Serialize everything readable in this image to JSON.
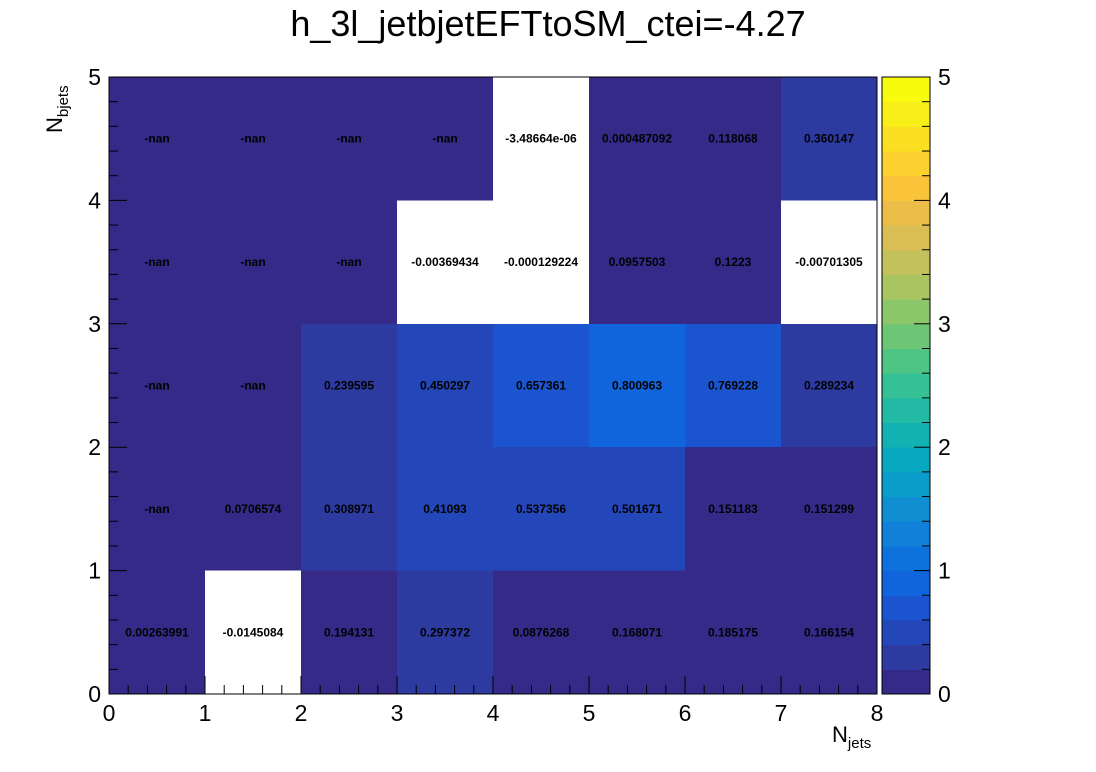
{
  "chart_data": {
    "type": "heatmap",
    "title": "h_3l_jetbjetEFTtoSM_ctei=-4.27",
    "xlabel": {
      "main": "N",
      "sub": "jets"
    },
    "ylabel": {
      "main": "N",
      "sub": "bjets"
    },
    "xlim": [
      0,
      8
    ],
    "ylim": [
      0,
      5
    ],
    "zlim": [
      0,
      5
    ],
    "x_ticks": [
      "0",
      "1",
      "2",
      "3",
      "4",
      "5",
      "6",
      "7",
      "8"
    ],
    "y_ticks": [
      "0",
      "1",
      "2",
      "3",
      "4",
      "5"
    ],
    "z_ticks": [
      "0",
      "1",
      "2",
      "3",
      "4",
      "5"
    ],
    "palette": [
      "#352a87",
      "#2d3aa0",
      "#2346b8",
      "#1a55cf",
      "#1064dc",
      "#0e72dc",
      "#1180d8",
      "#0f8fd2",
      "#0a9ccb",
      "#07a8c0",
      "#12b2b2",
      "#22baa4",
      "#35c095",
      "#4ec485",
      "#6cc676",
      "#8bc66a",
      "#a8c562",
      "#c2c15c",
      "#d9bd55",
      "#ecbd48",
      "#f9c33a",
      "#fbd02f",
      "#fadf22",
      "#f7ef17",
      "#f9fb0e"
    ],
    "empty_color": "#ffffff",
    "cells": [
      {
        "x": 0,
        "y": 0,
        "value": 0.00263991,
        "label": "0.00263991"
      },
      {
        "x": 1,
        "y": 0,
        "value": -0.0145084,
        "label": "-0.0145084"
      },
      {
        "x": 2,
        "y": 0,
        "value": 0.194131,
        "label": "0.194131"
      },
      {
        "x": 3,
        "y": 0,
        "value": 0.297372,
        "label": "0.297372"
      },
      {
        "x": 4,
        "y": 0,
        "value": 0.0876268,
        "label": "0.0876268"
      },
      {
        "x": 5,
        "y": 0,
        "value": 0.168071,
        "label": "0.168071"
      },
      {
        "x": 6,
        "y": 0,
        "value": 0.185175,
        "label": "0.185175"
      },
      {
        "x": 7,
        "y": 0,
        "value": 0.166154,
        "label": "0.166154"
      },
      {
        "x": 0,
        "y": 1,
        "value": null,
        "label": "-nan"
      },
      {
        "x": 1,
        "y": 1,
        "value": 0.0706574,
        "label": "0.0706574"
      },
      {
        "x": 2,
        "y": 1,
        "value": 0.308971,
        "label": "0.308971"
      },
      {
        "x": 3,
        "y": 1,
        "value": 0.41093,
        "label": "0.41093"
      },
      {
        "x": 4,
        "y": 1,
        "value": 0.537356,
        "label": "0.537356"
      },
      {
        "x": 5,
        "y": 1,
        "value": 0.501671,
        "label": "0.501671"
      },
      {
        "x": 6,
        "y": 1,
        "value": 0.151183,
        "label": "0.151183"
      },
      {
        "x": 7,
        "y": 1,
        "value": 0.151299,
        "label": "0.151299"
      },
      {
        "x": 0,
        "y": 2,
        "value": null,
        "label": "-nan"
      },
      {
        "x": 1,
        "y": 2,
        "value": null,
        "label": "-nan"
      },
      {
        "x": 2,
        "y": 2,
        "value": 0.239595,
        "label": "0.239595"
      },
      {
        "x": 3,
        "y": 2,
        "value": 0.450297,
        "label": "0.450297"
      },
      {
        "x": 4,
        "y": 2,
        "value": 0.657361,
        "label": "0.657361"
      },
      {
        "x": 5,
        "y": 2,
        "value": 0.800963,
        "label": "0.800963"
      },
      {
        "x": 6,
        "y": 2,
        "value": 0.769228,
        "label": "0.769228"
      },
      {
        "x": 7,
        "y": 2,
        "value": 0.289234,
        "label": "0.289234"
      },
      {
        "x": 0,
        "y": 3,
        "value": null,
        "label": "-nan"
      },
      {
        "x": 1,
        "y": 3,
        "value": null,
        "label": "-nan"
      },
      {
        "x": 2,
        "y": 3,
        "value": null,
        "label": "-nan"
      },
      {
        "x": 3,
        "y": 3,
        "value": -0.00369434,
        "label": "-0.00369434"
      },
      {
        "x": 4,
        "y": 3,
        "value": -0.000129224,
        "label": "-0.000129224"
      },
      {
        "x": 5,
        "y": 3,
        "value": 0.0957503,
        "label": "0.0957503"
      },
      {
        "x": 6,
        "y": 3,
        "value": 0.1223,
        "label": "0.1223"
      },
      {
        "x": 7,
        "y": 3,
        "value": -0.00701305,
        "label": "-0.00701305"
      },
      {
        "x": 0,
        "y": 4,
        "value": null,
        "label": "-nan"
      },
      {
        "x": 1,
        "y": 4,
        "value": null,
        "label": "-nan"
      },
      {
        "x": 2,
        "y": 4,
        "value": null,
        "label": "-nan"
      },
      {
        "x": 3,
        "y": 4,
        "value": null,
        "label": "-nan"
      },
      {
        "x": 4,
        "y": 4,
        "value": -3.48664e-06,
        "label": "-3.48664e-06"
      },
      {
        "x": 5,
        "y": 4,
        "value": 0.000487092,
        "label": "0.000487092"
      },
      {
        "x": 6,
        "y": 4,
        "value": 0.118068,
        "label": "0.118068"
      },
      {
        "x": 7,
        "y": 4,
        "value": 0.360147,
        "label": "0.360147"
      }
    ]
  }
}
